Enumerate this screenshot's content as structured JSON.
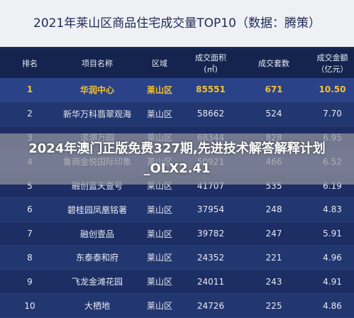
{
  "header": {
    "title": "2021年莱山区商品住宅成交量TOP10（数据：腾策）"
  },
  "table": {
    "columns": [
      "排名",
      "项目名称",
      "区域",
      [
        "成交面积",
        "(㎡)"
      ],
      "成交套数",
      [
        "成交金额",
        "（亿元）"
      ]
    ],
    "rows": [
      [
        "1",
        "华润中心",
        "莱山区",
        "85551",
        "671",
        "10.50"
      ],
      [
        "2",
        "新华万科翡翠观海",
        "莱山区",
        "58662",
        "524",
        "7.70"
      ],
      [
        "3",
        "滨湖万园",
        "莱山区",
        "68344",
        "828",
        "6.95"
      ],
      [
        "4",
        "鲁商金悦国际印象",
        "莱山区",
        "50921",
        "466",
        "6.52"
      ],
      [
        "5",
        "融创蓝天壹号",
        "莱山区",
        "41707",
        "535",
        "6.19"
      ],
      [
        "6",
        "碧桂园凤凰铭著",
        "莱山区",
        "37954",
        "248",
        "4.83"
      ],
      [
        "7",
        "融创壹品",
        "莱山区",
        "39782",
        "247",
        "5.91"
      ],
      [
        "8",
        "东泰泰和府",
        "莱山区",
        "24352",
        "221",
        "4.96"
      ],
      [
        "9",
        "飞龙金滩花园",
        "莱山区",
        "24011",
        "243",
        "4.91"
      ],
      [
        "10",
        "大栖地",
        "莱山区",
        "24726",
        "225",
        "4.86"
      ]
    ]
  },
  "overlay": {
    "text": "2024年澳门正版免费327期,先进技术解答解释计划_OLX2.41"
  }
}
